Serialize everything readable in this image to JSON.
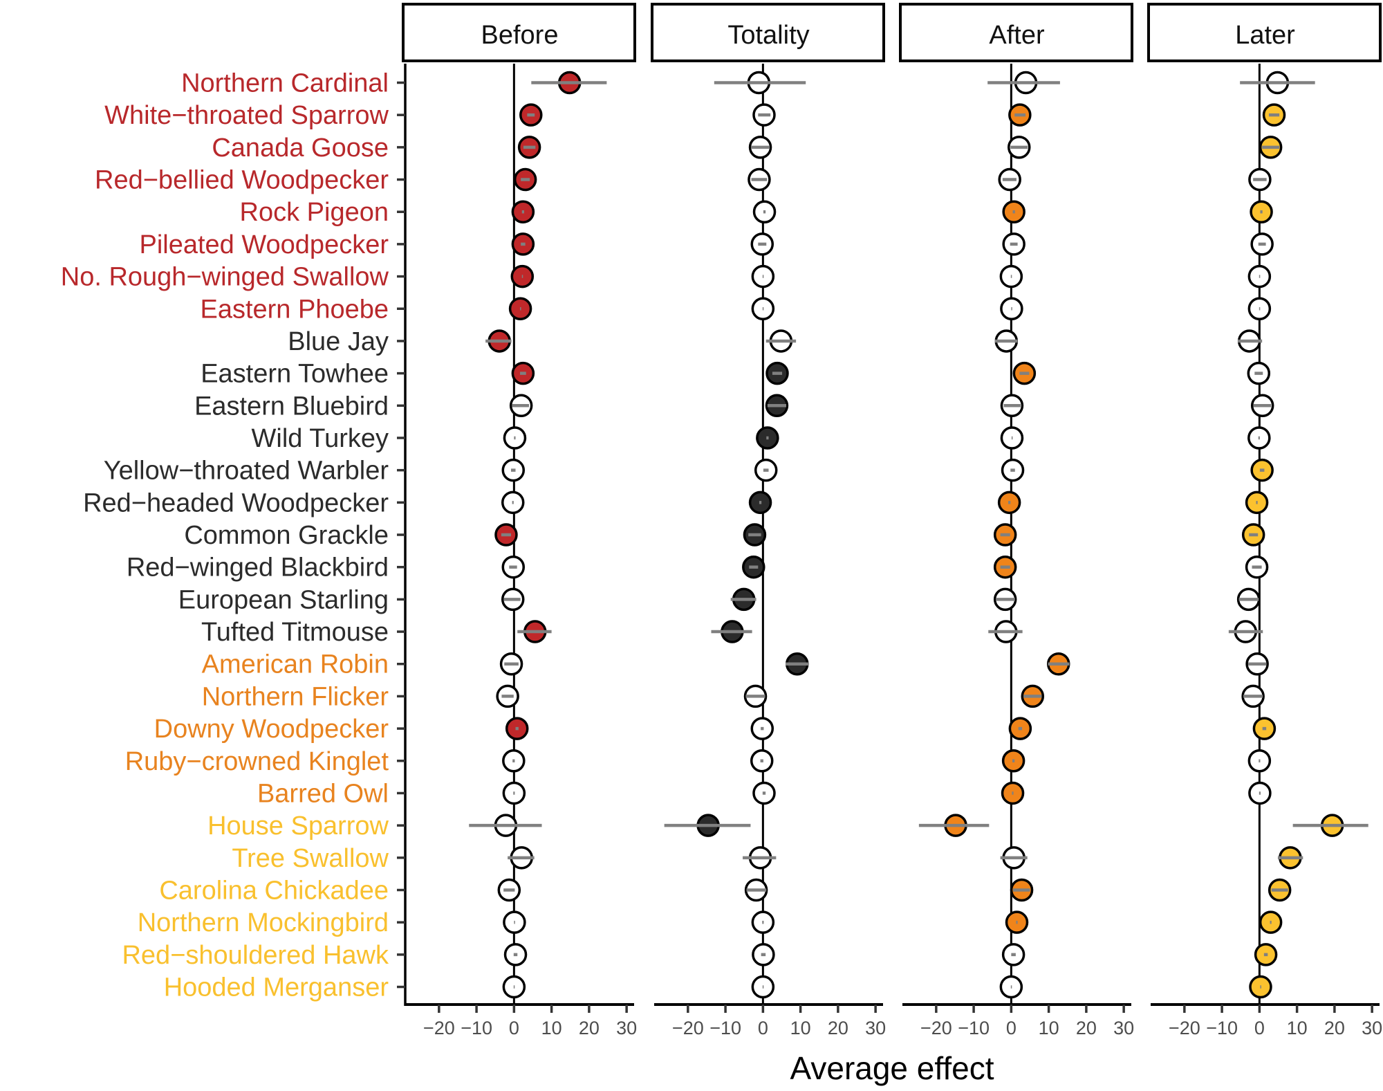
{
  "chart_data": {
    "type": "scatter",
    "subtype": "faceted dot-and-whisker (forest) plot",
    "xlabel": "Average effect",
    "ylabel": "",
    "xlim": [
      -29,
      32
    ],
    "x_ticks": [
      -20,
      -10,
      0,
      10,
      20,
      30
    ],
    "x_tick_labels": [
      "−20",
      "−10",
      "0",
      "10",
      "20",
      "30"
    ],
    "grid": false,
    "reference_line": 0,
    "facets": [
      "Before",
      "Totality",
      "After",
      "Later"
    ],
    "group_colors": {
      "red": "#B8282B",
      "dark": "#2B2B2B",
      "orange": "#E8831F",
      "yellow": "#F9C02E"
    },
    "fill_colors": {
      "Before": "#C0282A",
      "Totality": "#2B2B2B",
      "After": "#F0841A",
      "Later": "#FBC22F",
      "not_significant": "#FFFFFF"
    },
    "interval_color": "#808080",
    "species": [
      {
        "name": "Northern Cardinal",
        "group": "red"
      },
      {
        "name": "White−throated Sparrow",
        "group": "red"
      },
      {
        "name": "Canada Goose",
        "group": "red"
      },
      {
        "name": "Red−bellied Woodpecker",
        "group": "red"
      },
      {
        "name": "Rock Pigeon",
        "group": "red"
      },
      {
        "name": "Pileated Woodpecker",
        "group": "red"
      },
      {
        "name": "No. Rough−winged Swallow",
        "group": "red"
      },
      {
        "name": "Eastern Phoebe",
        "group": "red"
      },
      {
        "name": "Blue Jay",
        "group": "dark"
      },
      {
        "name": "Eastern Towhee",
        "group": "dark"
      },
      {
        "name": "Eastern Bluebird",
        "group": "dark"
      },
      {
        "name": "Wild Turkey",
        "group": "dark"
      },
      {
        "name": "Yellow−throated Warbler",
        "group": "dark"
      },
      {
        "name": "Red−headed Woodpecker",
        "group": "dark"
      },
      {
        "name": "Common Grackle",
        "group": "dark"
      },
      {
        "name": "Red−winged Blackbird",
        "group": "dark"
      },
      {
        "name": "European Starling",
        "group": "dark"
      },
      {
        "name": "Tufted Titmouse",
        "group": "dark"
      },
      {
        "name": "American Robin",
        "group": "orange"
      },
      {
        "name": "Northern Flicker",
        "group": "orange"
      },
      {
        "name": "Downy Woodpecker",
        "group": "orange"
      },
      {
        "name": "Ruby−crowned Kinglet",
        "group": "orange"
      },
      {
        "name": "Barred Owl",
        "group": "orange"
      },
      {
        "name": "House Sparrow",
        "group": "yellow"
      },
      {
        "name": "Tree Swallow",
        "group": "yellow"
      },
      {
        "name": "Carolina Chickadee",
        "group": "yellow"
      },
      {
        "name": "Northern Mockingbird",
        "group": "yellow"
      },
      {
        "name": "Red−shouldered Hawk",
        "group": "yellow"
      },
      {
        "name": "Hooded Merganser",
        "group": "yellow"
      }
    ],
    "series": [
      {
        "name": "Before",
        "values": [
          {
            "mean": 14.8,
            "lo": 4.6,
            "hi": 24.7,
            "sig": true
          },
          {
            "mean": 4.5,
            "lo": 3.5,
            "hi": 5.5,
            "sig": true
          },
          {
            "mean": 4.1,
            "lo": 2.5,
            "hi": 5.7,
            "sig": true
          },
          {
            "mean": 3.0,
            "lo": 1.8,
            "hi": 4.2,
            "sig": true
          },
          {
            "mean": 2.4,
            "lo": 2.1,
            "hi": 2.7,
            "sig": true
          },
          {
            "mean": 2.4,
            "lo": 1.8,
            "hi": 3.0,
            "sig": true
          },
          {
            "mean": 2.2,
            "lo": 2.1,
            "hi": 2.3,
            "sig": true
          },
          {
            "mean": 1.7,
            "lo": 1.6,
            "hi": 1.8,
            "sig": true
          },
          {
            "mean": -3.9,
            "lo": -7.6,
            "hi": -0.7,
            "sig": true
          },
          {
            "mean": 2.4,
            "lo": 1.6,
            "hi": 3.2,
            "sig": true
          },
          {
            "mean": 1.9,
            "lo": -0.5,
            "hi": 4.0,
            "sig": false
          },
          {
            "mean": 0.2,
            "lo": 0.0,
            "hi": 0.4,
            "sig": false
          },
          {
            "mean": -0.2,
            "lo": -0.8,
            "hi": 0.4,
            "sig": false
          },
          {
            "mean": -0.3,
            "lo": -0.5,
            "hi": -0.1,
            "sig": false
          },
          {
            "mean": -2.1,
            "lo": -3.4,
            "hi": -0.8,
            "sig": true
          },
          {
            "mean": -0.2,
            "lo": -1.3,
            "hi": 0.8,
            "sig": false
          },
          {
            "mean": -0.3,
            "lo": -2.7,
            "hi": 1.7,
            "sig": false
          },
          {
            "mean": 5.6,
            "lo": 0.9,
            "hi": 10.0,
            "sig": true
          },
          {
            "mean": -0.7,
            "lo": -2.6,
            "hi": 1.2,
            "sig": false
          },
          {
            "mean": -1.7,
            "lo": -3.3,
            "hi": -0.1,
            "sig": false
          },
          {
            "mean": 0.8,
            "lo": 0.4,
            "hi": 1.2,
            "sig": true
          },
          {
            "mean": -0.1,
            "lo": -0.4,
            "hi": 0.2,
            "sig": false
          },
          {
            "mean": 0.0,
            "lo": -0.2,
            "hi": 0.2,
            "sig": false
          },
          {
            "mean": -2.2,
            "lo": -12.0,
            "hi": 7.4,
            "sig": false
          },
          {
            "mean": 2.0,
            "lo": -1.7,
            "hi": 5.4,
            "sig": false
          },
          {
            "mean": -1.3,
            "lo": -2.8,
            "hi": 0.2,
            "sig": false
          },
          {
            "mean": 0.1,
            "lo": 0.0,
            "hi": 0.2,
            "sig": false
          },
          {
            "mean": 0.4,
            "lo": -0.1,
            "hi": 0.9,
            "sig": false
          },
          {
            "mean": 0.0,
            "lo": -0.1,
            "hi": 0.1,
            "sig": false
          }
        ]
      },
      {
        "name": "Totality",
        "values": [
          {
            "mean": -1.1,
            "lo": -13.0,
            "hi": 11.4,
            "sig": false
          },
          {
            "mean": 0.3,
            "lo": -1.3,
            "hi": 2.0,
            "sig": false
          },
          {
            "mean": -0.7,
            "lo": -3.2,
            "hi": 1.8,
            "sig": false
          },
          {
            "mean": -1.0,
            "lo": -3.1,
            "hi": 1.1,
            "sig": false
          },
          {
            "mean": 0.4,
            "lo": 0.1,
            "hi": 0.7,
            "sig": false
          },
          {
            "mean": -0.2,
            "lo": -1.3,
            "hi": 0.9,
            "sig": false
          },
          {
            "mean": 0.0,
            "lo": -0.1,
            "hi": 0.1,
            "sig": false
          },
          {
            "mean": 0.0,
            "lo": -0.1,
            "hi": 0.1,
            "sig": false
          },
          {
            "mean": 4.8,
            "lo": 0.8,
            "hi": 8.8,
            "sig": false
          },
          {
            "mean": 3.8,
            "lo": 2.5,
            "hi": 5.1,
            "sig": true
          },
          {
            "mean": 3.7,
            "lo": 1.2,
            "hi": 6.2,
            "sig": true
          },
          {
            "mean": 1.2,
            "lo": 0.9,
            "hi": 1.5,
            "sig": true
          },
          {
            "mean": 0.8,
            "lo": 0.1,
            "hi": 1.5,
            "sig": false
          },
          {
            "mean": -0.7,
            "lo": -1.0,
            "hi": -0.4,
            "sig": true
          },
          {
            "mean": -2.2,
            "lo": -3.9,
            "hi": -0.5,
            "sig": true
          },
          {
            "mean": -2.5,
            "lo": -3.7,
            "hi": -1.3,
            "sig": true
          },
          {
            "mean": -5.1,
            "lo": -8.6,
            "hi": -1.8,
            "sig": true
          },
          {
            "mean": -8.2,
            "lo": -13.8,
            "hi": -2.9,
            "sig": true
          },
          {
            "mean": 9.1,
            "lo": 6.0,
            "hi": 12.1,
            "sig": true
          },
          {
            "mean": -2.0,
            "lo": -4.6,
            "hi": 0.6,
            "sig": false
          },
          {
            "mean": -0.2,
            "lo": -0.6,
            "hi": 0.2,
            "sig": false
          },
          {
            "mean": -0.3,
            "lo": -0.7,
            "hi": 0.1,
            "sig": false
          },
          {
            "mean": 0.3,
            "lo": -0.1,
            "hi": 0.7,
            "sig": false
          },
          {
            "mean": -14.6,
            "lo": -26.3,
            "hi": -3.3,
            "sig": true
          },
          {
            "mean": -0.7,
            "lo": -5.4,
            "hi": 3.5,
            "sig": false
          },
          {
            "mean": -1.8,
            "lo": -4.4,
            "hi": 0.9,
            "sig": false
          },
          {
            "mean": 0.0,
            "lo": -0.2,
            "hi": 0.2,
            "sig": false
          },
          {
            "mean": 0.1,
            "lo": -0.5,
            "hi": 0.7,
            "sig": false
          },
          {
            "mean": 0.0,
            "lo": -0.1,
            "hi": 0.1,
            "sig": false
          }
        ]
      },
      {
        "name": "After",
        "values": [
          {
            "mean": 3.9,
            "lo": -6.3,
            "hi": 13.0,
            "sig": false
          },
          {
            "mean": 2.3,
            "lo": 0.9,
            "hi": 3.8,
            "sig": true
          },
          {
            "mean": 2.1,
            "lo": -0.2,
            "hi": 4.4,
            "sig": false
          },
          {
            "mean": -0.4,
            "lo": -2.3,
            "hi": 1.4,
            "sig": false
          },
          {
            "mean": 0.7,
            "lo": 0.4,
            "hi": 1.0,
            "sig": true
          },
          {
            "mean": 0.7,
            "lo": -0.3,
            "hi": 1.7,
            "sig": false
          },
          {
            "mean": 0.0,
            "lo": -0.1,
            "hi": 0.1,
            "sig": false
          },
          {
            "mean": 0.1,
            "lo": 0.0,
            "hi": 0.2,
            "sig": false
          },
          {
            "mean": -1.3,
            "lo": -4.4,
            "hi": 1.7,
            "sig": false
          },
          {
            "mean": 3.5,
            "lo": 2.2,
            "hi": 4.8,
            "sig": true
          },
          {
            "mean": 0.2,
            "lo": -2.0,
            "hi": 2.5,
            "sig": false
          },
          {
            "mean": 0.2,
            "lo": 0.1,
            "hi": 0.3,
            "sig": false
          },
          {
            "mean": 0.4,
            "lo": -0.2,
            "hi": 1.0,
            "sig": false
          },
          {
            "mean": -0.5,
            "lo": -0.8,
            "hi": -0.2,
            "sig": true
          },
          {
            "mean": -1.6,
            "lo": -2.9,
            "hi": -0.3,
            "sig": true
          },
          {
            "mean": -1.6,
            "lo": -2.9,
            "hi": -0.3,
            "sig": true
          },
          {
            "mean": -1.6,
            "lo": -4.1,
            "hi": 1.0,
            "sig": false
          },
          {
            "mean": -1.4,
            "lo": -6.1,
            "hi": 3.0,
            "sig": false
          },
          {
            "mean": 12.6,
            "lo": 9.8,
            "hi": 15.5,
            "sig": true
          },
          {
            "mean": 5.7,
            "lo": 3.3,
            "hi": 8.1,
            "sig": true
          },
          {
            "mean": 2.4,
            "lo": 1.9,
            "hi": 2.9,
            "sig": true
          },
          {
            "mean": 0.6,
            "lo": 0.3,
            "hi": 0.9,
            "sig": true
          },
          {
            "mean": 0.4,
            "lo": 0.2,
            "hi": 0.6,
            "sig": true
          },
          {
            "mean": -14.8,
            "lo": -24.6,
            "hi": -5.9,
            "sig": true
          },
          {
            "mean": 0.7,
            "lo": -2.9,
            "hi": 4.3,
            "sig": false
          },
          {
            "mean": 2.8,
            "lo": 0.5,
            "hi": 5.0,
            "sig": true
          },
          {
            "mean": 1.5,
            "lo": 1.3,
            "hi": 1.7,
            "sig": true
          },
          {
            "mean": 0.6,
            "lo": 0.0,
            "hi": 1.2,
            "sig": false
          },
          {
            "mean": 0.0,
            "lo": -0.1,
            "hi": 0.1,
            "sig": false
          }
        ]
      },
      {
        "name": "Later",
        "values": [
          {
            "mean": 4.8,
            "lo": -5.2,
            "hi": 14.8,
            "sig": false
          },
          {
            "mean": 3.9,
            "lo": 2.5,
            "hi": 5.3,
            "sig": true
          },
          {
            "mean": 3.0,
            "lo": 0.7,
            "hi": 5.3,
            "sig": true
          },
          {
            "mean": 0.1,
            "lo": -1.7,
            "hi": 1.9,
            "sig": false
          },
          {
            "mean": 0.5,
            "lo": 0.2,
            "hi": 0.8,
            "sig": true
          },
          {
            "mean": 0.7,
            "lo": -0.3,
            "hi": 1.7,
            "sig": false
          },
          {
            "mean": 0.0,
            "lo": -0.1,
            "hi": 0.1,
            "sig": false
          },
          {
            "mean": 0.0,
            "lo": -0.1,
            "hi": 0.1,
            "sig": false
          },
          {
            "mean": -2.7,
            "lo": -5.8,
            "hi": 0.7,
            "sig": false
          },
          {
            "mean": -0.2,
            "lo": -1.3,
            "hi": 0.9,
            "sig": false
          },
          {
            "mean": 0.8,
            "lo": -1.6,
            "hi": 3.1,
            "sig": false
          },
          {
            "mean": -0.1,
            "lo": -0.3,
            "hi": 0.1,
            "sig": false
          },
          {
            "mean": 0.7,
            "lo": 0.1,
            "hi": 1.3,
            "sig": true
          },
          {
            "mean": -0.7,
            "lo": -0.9,
            "hi": -0.5,
            "sig": true
          },
          {
            "mean": -1.6,
            "lo": -2.8,
            "hi": -0.4,
            "sig": true
          },
          {
            "mean": -0.7,
            "lo": -2.0,
            "hi": 0.6,
            "sig": false
          },
          {
            "mean": -2.9,
            "lo": -5.5,
            "hi": -0.2,
            "sig": false
          },
          {
            "mean": -3.7,
            "lo": -8.2,
            "hi": 0.9,
            "sig": false
          },
          {
            "mean": -0.6,
            "lo": -3.0,
            "hi": 1.8,
            "sig": false
          },
          {
            "mean": -1.7,
            "lo": -4.3,
            "hi": 0.9,
            "sig": false
          },
          {
            "mean": 1.3,
            "lo": 0.8,
            "hi": 1.8,
            "sig": true
          },
          {
            "mean": 0.0,
            "lo": -0.2,
            "hi": 0.2,
            "sig": false
          },
          {
            "mean": 0.1,
            "lo": -0.1,
            "hi": 0.3,
            "sig": false
          },
          {
            "mean": 19.4,
            "lo": 8.9,
            "hi": 29.0,
            "sig": true
          },
          {
            "mean": 8.2,
            "lo": 4.9,
            "hi": 11.6,
            "sig": true
          },
          {
            "mean": 5.4,
            "lo": 3.2,
            "hi": 7.6,
            "sig": true
          },
          {
            "mean": 3.0,
            "lo": 2.8,
            "hi": 3.2,
            "sig": true
          },
          {
            "mean": 1.7,
            "lo": 1.2,
            "hi": 2.2,
            "sig": true
          },
          {
            "mean": 0.3,
            "lo": 0.2,
            "hi": 0.4,
            "sig": true
          }
        ]
      }
    ]
  }
}
